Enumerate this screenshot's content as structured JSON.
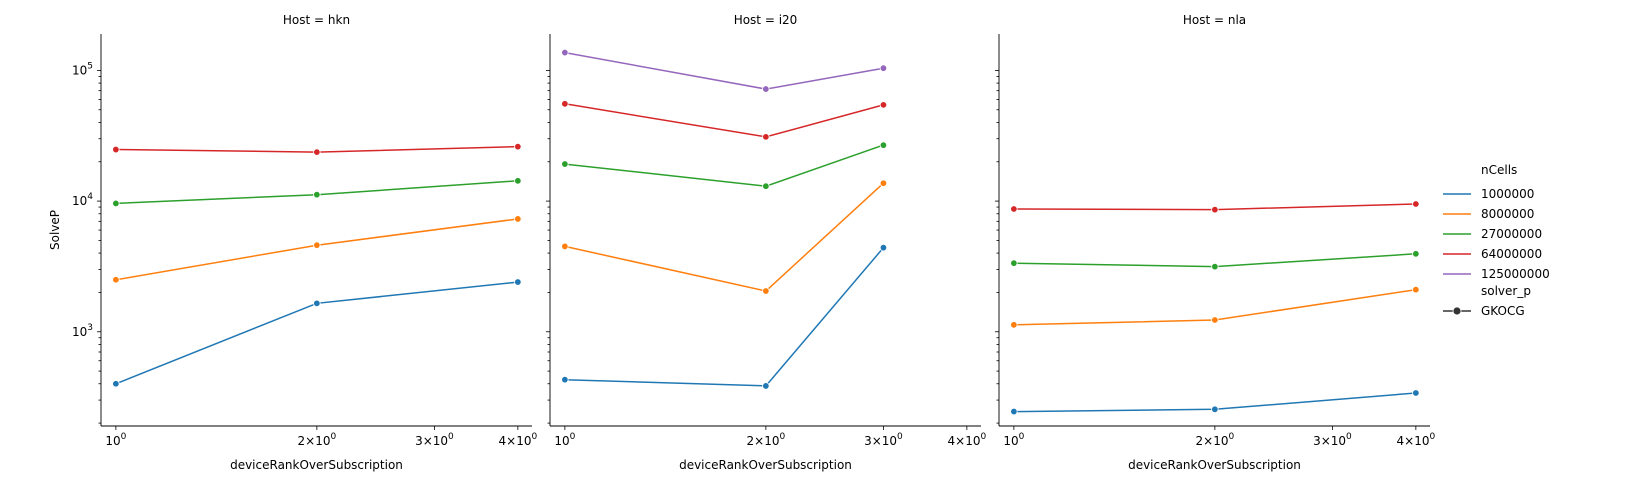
{
  "chart_data": {
    "type": "line",
    "facet_label": "Host",
    "xlabel": "deviceRankOverSubscription",
    "ylabel": "SolveP",
    "x_scale": "log",
    "y_scale": "log",
    "xlim": [
      0.95,
      4.2
    ],
    "ylim": [
      190,
      190000
    ],
    "x_ticks": [
      1,
      2,
      3,
      4
    ],
    "x_tick_labels": [
      "10^0",
      "2×10^0",
      "3×10^0",
      "4×10^0"
    ],
    "y_ticks": [
      1000,
      10000,
      100000
    ],
    "y_tick_labels": [
      "10^3",
      "10^4",
      "10^5"
    ],
    "grid": false,
    "legend": {
      "placement": "right",
      "hue_title": "nCells",
      "style_title": "solver_p",
      "style_entries": [
        "GKOCG"
      ],
      "entries": [
        {
          "name": "1000000",
          "color": "#1f77b4"
        },
        {
          "name": "8000000",
          "color": "#ff7f0e"
        },
        {
          "name": "27000000",
          "color": "#2ca02c"
        },
        {
          "name": "64000000",
          "color": "#d62728"
        },
        {
          "name": "125000000",
          "color": "#9467bd"
        }
      ]
    },
    "panels": [
      {
        "title": "Host = hkn",
        "series": [
          {
            "name": "1000000",
            "x": [
              1,
              2,
              4
            ],
            "y": [
              400,
              1650,
              2400
            ]
          },
          {
            "name": "8000000",
            "x": [
              1,
              2,
              4
            ],
            "y": [
              2500,
              4600,
              7300
            ]
          },
          {
            "name": "27000000",
            "x": [
              1,
              2,
              4
            ],
            "y": [
              9600,
              11200,
              14300
            ]
          },
          {
            "name": "64000000",
            "x": [
              1,
              2,
              4
            ],
            "y": [
              24800,
              23700,
              26100
            ]
          }
        ]
      },
      {
        "title": "Host = i20",
        "series": [
          {
            "name": "1000000",
            "x": [
              1,
              2,
              3
            ],
            "y": [
              430,
              385,
              4400
            ]
          },
          {
            "name": "8000000",
            "x": [
              1,
              2,
              3
            ],
            "y": [
              4500,
              2050,
              13700
            ]
          },
          {
            "name": "27000000",
            "x": [
              1,
              2,
              3
            ],
            "y": [
              19200,
              13000,
              26800
            ]
          },
          {
            "name": "64000000",
            "x": [
              1,
              2,
              3
            ],
            "y": [
              55500,
              31000,
              54500
            ]
          },
          {
            "name": "125000000",
            "x": [
              1,
              2,
              3
            ],
            "y": [
              137000,
              72000,
              104000
            ]
          }
        ]
      },
      {
        "title": "Host = nla",
        "series": [
          {
            "name": "1000000",
            "x": [
              1,
              2,
              4
            ],
            "y": [
              245,
              255,
              340
            ]
          },
          {
            "name": "8000000",
            "x": [
              1,
              2,
              4
            ],
            "y": [
              1130,
              1230,
              2100
            ]
          },
          {
            "name": "27000000",
            "x": [
              1,
              2,
              4
            ],
            "y": [
              3350,
              3150,
              3950
            ]
          },
          {
            "name": "64000000",
            "x": [
              1,
              2,
              4
            ],
            "y": [
              8700,
              8600,
              9500
            ]
          }
        ]
      }
    ]
  }
}
